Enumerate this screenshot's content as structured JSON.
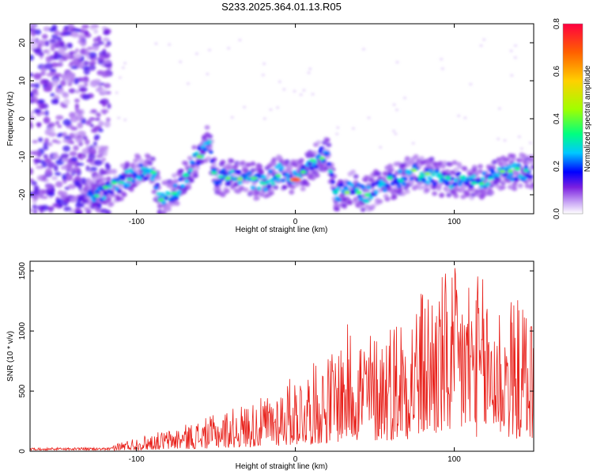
{
  "title": "S233.2025.364.01.13.R05",
  "chart_data": [
    {
      "type": "heatmap",
      "xlabel": "Height of straight line (km)",
      "ylabel": "Frequency (Hz)",
      "xlim": [
        -167,
        150
      ],
      "ylim": [
        -25,
        25
      ],
      "x_ticks": [
        -100,
        0,
        100
      ],
      "y_ticks": [
        -20,
        -10,
        0,
        10,
        20
      ],
      "colorbar": {
        "label": "Normalized spectral amplitude",
        "range": [
          0,
          0.8
        ],
        "ticks": [
          "0.0",
          "0.2",
          "0.4",
          "0.6",
          "0.8"
        ],
        "colors": [
          "#ffffff",
          "#c9a6f5",
          "#7a1fe0",
          "#0000ff",
          "#00c8ff",
          "#00ff80",
          "#a0ff00",
          "#ffd000",
          "#ff6000",
          "#ff0040"
        ]
      },
      "ridge": [
        {
          "x": -130,
          "freq": -21
        },
        {
          "x": -120,
          "freq": -19
        },
        {
          "x": -110,
          "freq": -17
        },
        {
          "x": -100,
          "freq": -14
        },
        {
          "x": -90,
          "freq": -14
        },
        {
          "x": -85,
          "freq": -21
        },
        {
          "x": -75,
          "freq": -19
        },
        {
          "x": -67,
          "freq": -14
        },
        {
          "x": -60,
          "freq": -9
        },
        {
          "x": -55,
          "freq": -6
        },
        {
          "x": -50,
          "freq": -16
        },
        {
          "x": -40,
          "freq": -15
        },
        {
          "x": -30,
          "freq": -16
        },
        {
          "x": -20,
          "freq": -17
        },
        {
          "x": -10,
          "freq": -14
        },
        {
          "x": -5,
          "freq": -15
        },
        {
          "x": 0,
          "freq": -16
        },
        {
          "x": 8,
          "freq": -13
        },
        {
          "x": 15,
          "freq": -10
        },
        {
          "x": 20,
          "freq": -9
        },
        {
          "x": 25,
          "freq": -20
        },
        {
          "x": 35,
          "freq": -18
        },
        {
          "x": 45,
          "freq": -20
        },
        {
          "x": 55,
          "freq": -17
        },
        {
          "x": 65,
          "freq": -16
        },
        {
          "x": 75,
          "freq": -14
        },
        {
          "x": 85,
          "freq": -15
        },
        {
          "x": 95,
          "freq": -16
        },
        {
          "x": 105,
          "freq": -16
        },
        {
          "x": 115,
          "freq": -17
        },
        {
          "x": 125,
          "freq": -15
        },
        {
          "x": 135,
          "freq": -14
        },
        {
          "x": 145,
          "freq": -14
        }
      ],
      "peak": {
        "x": 0,
        "freq": -16,
        "amplitude": 0.8
      }
    },
    {
      "type": "line",
      "xlabel": "Height of straight line (km)",
      "ylabel": "SNR (10 * v/v)",
      "xlim": [
        -167,
        150
      ],
      "ylim": [
        0,
        1580
      ],
      "x_ticks": [
        -100,
        0,
        100
      ],
      "y_ticks": [
        0,
        500,
        1000,
        1500
      ],
      "color": "#e8201a",
      "envelope_x": [
        -167,
        -140,
        -120,
        -100,
        -80,
        -60,
        -40,
        -20,
        0,
        20,
        35,
        50,
        70,
        90,
        110,
        130,
        150
      ],
      "envelope_y": [
        20,
        25,
        40,
        120,
        180,
        260,
        360,
        450,
        650,
        800,
        1100,
        1000,
        1250,
        1500,
        1550,
        1300,
        1250
      ]
    }
  ]
}
